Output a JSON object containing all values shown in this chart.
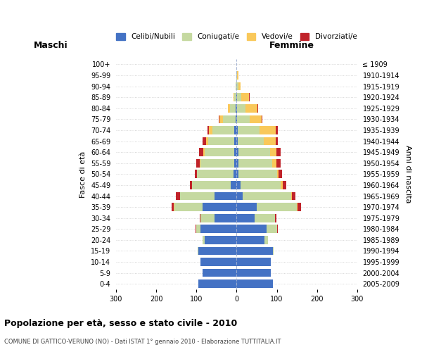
{
  "age_groups": [
    "0-4",
    "5-9",
    "10-14",
    "15-19",
    "20-24",
    "25-29",
    "30-34",
    "35-39",
    "40-44",
    "45-49",
    "50-54",
    "55-59",
    "60-64",
    "65-69",
    "70-74",
    "75-79",
    "80-84",
    "85-89",
    "90-94",
    "95-99",
    "100+"
  ],
  "birth_years": [
    "2005-2009",
    "2000-2004",
    "1995-1999",
    "1990-1994",
    "1985-1989",
    "1980-1984",
    "1975-1979",
    "1970-1974",
    "1965-1969",
    "1960-1964",
    "1955-1959",
    "1950-1954",
    "1945-1949",
    "1940-1944",
    "1935-1939",
    "1930-1934",
    "1925-1929",
    "1920-1924",
    "1915-1919",
    "1910-1914",
    "≤ 1909"
  ],
  "maschi": {
    "celibi": [
      95,
      85,
      90,
      95,
      80,
      90,
      55,
      85,
      55,
      15,
      8,
      5,
      5,
      5,
      5,
      3,
      2,
      1,
      0,
      0,
      0
    ],
    "coniugati": [
      0,
      0,
      0,
      1,
      5,
      10,
      35,
      70,
      85,
      95,
      90,
      85,
      75,
      65,
      55,
      30,
      15,
      5,
      2,
      0,
      0
    ],
    "vedovi": [
      0,
      0,
      0,
      0,
      0,
      0,
      0,
      1,
      1,
      1,
      1,
      2,
      3,
      5,
      8,
      10,
      5,
      2,
      0,
      0,
      0
    ],
    "divorziati": [
      0,
      0,
      0,
      0,
      0,
      2,
      2,
      5,
      10,
      5,
      5,
      8,
      10,
      10,
      5,
      2,
      0,
      0,
      0,
      0,
      0
    ]
  },
  "femmine": {
    "nubili": [
      90,
      85,
      85,
      90,
      70,
      75,
      45,
      50,
      15,
      10,
      5,
      4,
      4,
      3,
      3,
      2,
      2,
      1,
      0,
      0,
      0
    ],
    "coniugate": [
      0,
      0,
      0,
      2,
      8,
      25,
      50,
      100,
      120,
      100,
      95,
      85,
      80,
      65,
      55,
      30,
      20,
      10,
      5,
      2,
      0
    ],
    "vedove": [
      0,
      0,
      0,
      0,
      0,
      1,
      1,
      2,
      2,
      5,
      5,
      10,
      15,
      30,
      40,
      30,
      30,
      20,
      5,
      2,
      0
    ],
    "divorziate": [
      0,
      0,
      0,
      0,
      0,
      1,
      3,
      8,
      10,
      8,
      8,
      10,
      10,
      5,
      5,
      2,
      2,
      2,
      0,
      0,
      0
    ]
  },
  "colors": {
    "celibi": "#4472C4",
    "coniugati": "#C5D9A0",
    "vedovi": "#F9C85A",
    "divorziati": "#C0232A"
  },
  "xlim": 300,
  "title": "Popolazione per età, sesso e stato civile - 2010",
  "subtitle": "COMUNE DI GATTICO-VERUNO (NO) - Dati ISTAT 1° gennaio 2010 - Elaborazione TUTTITALIA.IT",
  "ylabel": "Fasce di età",
  "ylabel_right": "Anni di nascita",
  "label_maschi": "Maschi",
  "label_femmine": "Femmine",
  "legend_labels": [
    "Celibi/Nubili",
    "Coniugati/e",
    "Vedovi/e",
    "Divorziati/e"
  ],
  "bg_color": "#ffffff",
  "grid_color": "#cccccc"
}
